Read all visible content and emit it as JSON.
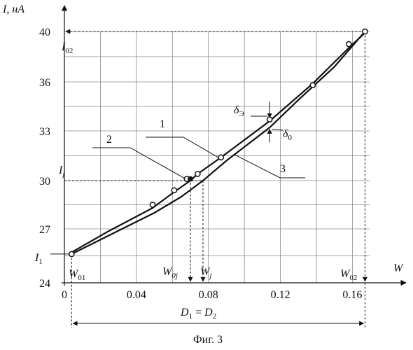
{
  "chart_data": {
    "type": "line",
    "title": "",
    "caption": "Фиг. 3",
    "xlabel": "W",
    "ylabel": "I, нА",
    "xlim": [
      0,
      0.175
    ],
    "ylim": [
      24,
      41
    ],
    "x_ticks": [
      {
        "v": 0,
        "label": "0"
      },
      {
        "v": 0.04,
        "label": "0.04"
      },
      {
        "v": 0.08,
        "label": "0.08"
      },
      {
        "v": 0.12,
        "label": "0.12"
      },
      {
        "v": 0.16,
        "label": "0.16"
      }
    ],
    "y_ticks": [
      {
        "v": 24,
        "label": "24"
      },
      {
        "v": 27,
        "label": "27"
      },
      {
        "v": 30,
        "label": "30"
      },
      {
        "v": 33,
        "label": "33"
      },
      {
        "v": 36,
        "label": "36"
      },
      {
        "v": 40,
        "label": "40"
      }
    ],
    "grid": true,
    "series": [
      {
        "id": "1",
        "points": [
          [
            0.004,
            25.7
          ],
          [
            0.025,
            26.9
          ],
          [
            0.049,
            28.3
          ],
          [
            0.061,
            29.3
          ],
          [
            0.07,
            30.0
          ],
          [
            0.074,
            30.4
          ],
          [
            0.087,
            31.4
          ],
          [
            0.114,
            33.6
          ],
          [
            0.138,
            35.9
          ],
          [
            0.158,
            38.7
          ],
          [
            0.167,
            39.9
          ]
        ],
        "markers": [
          [
            0.049,
            28.5
          ],
          [
            0.061,
            29.4
          ],
          [
            0.068,
            30.1
          ],
          [
            0.074,
            30.4
          ],
          [
            0.087,
            31.4
          ],
          [
            0.114,
            33.7
          ],
          [
            0.138,
            35.8
          ],
          [
            0.158,
            39.0
          ],
          [
            0.167,
            40.0
          ],
          [
            0.004,
            25.6
          ]
        ]
      },
      {
        "id": "3",
        "points": [
          [
            0.004,
            25.6
          ],
          [
            0.03,
            26.9
          ],
          [
            0.05,
            28.0
          ],
          [
            0.065,
            29.0
          ],
          [
            0.077,
            30.0
          ],
          [
            0.09,
            31.2
          ],
          [
            0.114,
            33.2
          ],
          [
            0.13,
            34.9
          ],
          [
            0.15,
            37.2
          ],
          [
            0.167,
            40.0
          ]
        ]
      }
    ],
    "highlight_point": [
      0.07,
      30.1
    ],
    "annotations": {
      "I02": {
        "text": "I",
        "sub": "02",
        "y": 40
      },
      "Ij": {
        "text": "I",
        "sub": "j",
        "y": 30
      },
      "I1": {
        "text": "I",
        "sub": "1",
        "y": 25.6
      },
      "W01": {
        "text": "W",
        "sub": "01",
        "x": 0.004
      },
      "W0j": {
        "text": "W",
        "sub": "0j",
        "x": 0.07
      },
      "Wj": {
        "text": "W",
        "sub": "j",
        "x": 0.077
      },
      "W02": {
        "text": "W",
        "sub": "02",
        "x": 0.167
      },
      "delta_e": {
        "text": "δ",
        "sub": "Э"
      },
      "delta_0": {
        "text": "δ",
        "sub": "0"
      },
      "label_1": "1",
      "label_2": "2",
      "label_3": "3",
      "range_label": {
        "a": "D",
        "a_sub": "1",
        "eq": " = ",
        "b": "D",
        "b_sub": "2"
      }
    }
  }
}
